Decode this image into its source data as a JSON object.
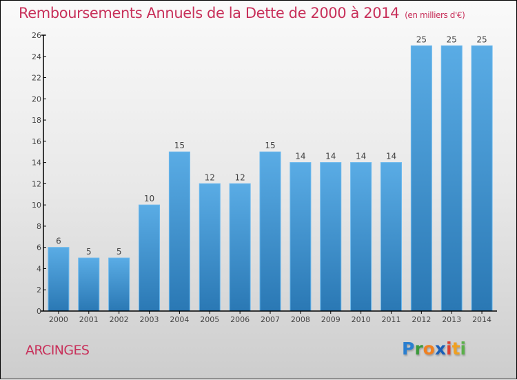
{
  "chart_data": {
    "type": "bar",
    "title": "Remboursements Annuels de la Dette de 2000 à 2014",
    "subtitle": "(en milliers d'€)",
    "xlabel": "",
    "ylabel": "",
    "categories": [
      "2000",
      "2001",
      "2002",
      "2003",
      "2004",
      "2005",
      "2006",
      "2007",
      "2008",
      "2009",
      "2010",
      "2011",
      "2012",
      "2013",
      "2014"
    ],
    "values": [
      6,
      5,
      5,
      10,
      15,
      12,
      12,
      15,
      14,
      14,
      14,
      14,
      25,
      25,
      25
    ],
    "ylim": [
      0,
      26
    ],
    "yticks": [
      0,
      2,
      4,
      6,
      8,
      10,
      12,
      14,
      16,
      18,
      20,
      22,
      24,
      26
    ],
    "grid": false,
    "legend": "none",
    "bar_color_top": "#5aace5",
    "bar_color_bottom": "#2a78b4"
  },
  "footer": {
    "commune": "ARCINGES",
    "logo": {
      "letters": [
        {
          "char": "P",
          "color": "#2a7fd0"
        },
        {
          "char": "r",
          "color": "#3a9a3a"
        },
        {
          "char": "o",
          "color": "#f08020"
        },
        {
          "char": "x",
          "color": "#1a5fb8"
        },
        {
          "char": "i",
          "color": "#e04030"
        },
        {
          "char": "t",
          "color": "#f0a020"
        },
        {
          "char": "i",
          "color": "#5ab04a"
        }
      ]
    }
  },
  "colors": {
    "title": "#c8305a",
    "axis": "#000000"
  }
}
